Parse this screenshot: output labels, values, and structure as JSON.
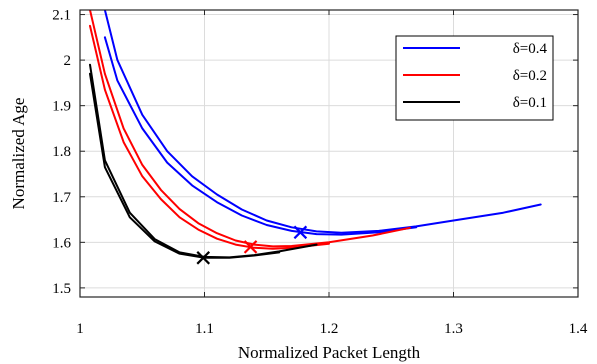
{
  "chart_data": {
    "type": "line",
    "xlabel": "Normalized Packet Length",
    "ylabel": "Normalized Age",
    "xlim": [
      1.0,
      1.4
    ],
    "ylim": [
      1.48,
      2.11
    ],
    "xticks": [
      "1",
      "1.1",
      "1.2",
      "1.3",
      "1.4"
    ],
    "yticks": [
      "1.5",
      "1.6",
      "1.7",
      "1.8",
      "1.9",
      "2",
      "2.1"
    ],
    "xtick_values": [
      1.0,
      1.1,
      1.2,
      1.3,
      1.4
    ],
    "ytick_values": [
      1.5,
      1.6,
      1.7,
      1.8,
      1.9,
      2.0,
      2.1
    ],
    "grid": true,
    "legend_position": "top-right",
    "series": [
      {
        "name": "δ=0.4",
        "color": "#0000ff",
        "curves": [
          [
            [
              1.02,
              2.11
            ],
            [
              1.03,
              2.0
            ],
            [
              1.05,
              1.88
            ],
            [
              1.07,
              1.8
            ],
            [
              1.09,
              1.745
            ],
            [
              1.11,
              1.705
            ],
            [
              1.13,
              1.672
            ],
            [
              1.15,
              1.648
            ],
            [
              1.17,
              1.633
            ],
            [
              1.19,
              1.624
            ],
            [
              1.21,
              1.621
            ],
            [
              1.24,
              1.625
            ],
            [
              1.27,
              1.635
            ],
            [
              1.3,
              1.648
            ],
            [
              1.34,
              1.665
            ],
            [
              1.37,
              1.683
            ]
          ],
          [
            [
              1.02,
              2.05
            ],
            [
              1.03,
              1.955
            ],
            [
              1.05,
              1.85
            ],
            [
              1.07,
              1.775
            ],
            [
              1.09,
              1.725
            ],
            [
              1.11,
              1.688
            ],
            [
              1.13,
              1.659
            ],
            [
              1.15,
              1.638
            ],
            [
              1.17,
              1.625
            ],
            [
              1.19,
              1.618
            ],
            [
              1.21,
              1.617
            ],
            [
              1.24,
              1.622
            ],
            [
              1.27,
              1.633
            ]
          ]
        ],
        "optimum": [
          1.177,
          1.622
        ]
      },
      {
        "name": "δ=0.2",
        "color": "#ff0000",
        "curves": [
          [
            [
              1.008,
              2.11
            ],
            [
              1.02,
              1.97
            ],
            [
              1.035,
              1.85
            ],
            [
              1.05,
              1.77
            ],
            [
              1.065,
              1.715
            ],
            [
              1.08,
              1.673
            ],
            [
              1.095,
              1.642
            ],
            [
              1.11,
              1.62
            ],
            [
              1.125,
              1.604
            ],
            [
              1.14,
              1.595
            ],
            [
              1.155,
              1.591
            ],
            [
              1.17,
              1.592
            ],
            [
              1.2,
              1.6
            ],
            [
              1.235,
              1.615
            ],
            [
              1.265,
              1.632
            ]
          ],
          [
            [
              1.008,
              2.075
            ],
            [
              1.02,
              1.935
            ],
            [
              1.035,
              1.82
            ],
            [
              1.05,
              1.745
            ],
            [
              1.065,
              1.695
            ],
            [
              1.08,
              1.655
            ],
            [
              1.095,
              1.628
            ],
            [
              1.11,
              1.608
            ],
            [
              1.125,
              1.595
            ],
            [
              1.14,
              1.588
            ],
            [
              1.155,
              1.586
            ],
            [
              1.17,
              1.588
            ],
            [
              1.2,
              1.597
            ]
          ]
        ],
        "optimum": [
          1.137,
          1.59
        ]
      },
      {
        "name": "δ=0.1",
        "color": "#000000",
        "curves": [
          [
            [
              1.008,
              1.99
            ],
            [
              1.02,
              1.78
            ],
            [
              1.04,
              1.665
            ],
            [
              1.06,
              1.607
            ],
            [
              1.08,
              1.578
            ],
            [
              1.1,
              1.568
            ],
            [
              1.12,
              1.567
            ],
            [
              1.14,
              1.572
            ],
            [
              1.16,
              1.58
            ],
            [
              1.18,
              1.59
            ],
            [
              1.19,
              1.595
            ]
          ],
          [
            [
              1.008,
              1.97
            ],
            [
              1.02,
              1.765
            ],
            [
              1.04,
              1.655
            ],
            [
              1.06,
              1.602
            ],
            [
              1.08,
              1.575
            ],
            [
              1.1,
              1.566
            ],
            [
              1.12,
              1.566
            ],
            [
              1.14,
              1.571
            ],
            [
              1.16,
              1.578
            ]
          ]
        ],
        "optimum": [
          1.099,
          1.566
        ]
      }
    ]
  }
}
